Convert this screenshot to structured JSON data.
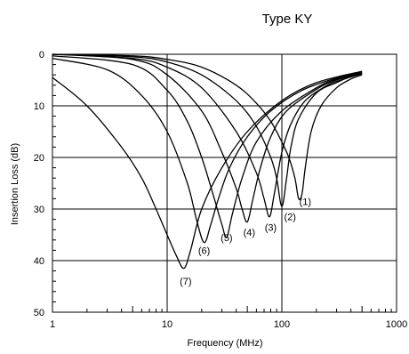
{
  "chart_data": {
    "type": "line",
    "title": "Type KY",
    "xlabel": "Frequency (MHz)",
    "ylabel": "Insertion Loss (dB)",
    "x_scale": "log",
    "xlim": [
      1,
      1000
    ],
    "ylim": [
      0,
      50
    ],
    "y_inverted": true,
    "x_ticks": [
      "1",
      "10",
      "100",
      "1000"
    ],
    "y_ticks": [
      "0",
      "10",
      "20",
      "30",
      "40",
      "50"
    ],
    "grid": true,
    "series": [
      {
        "name": "(1)",
        "x": [
          1,
          5,
          10,
          20,
          40,
          60,
          80,
          100,
          115,
          130,
          140,
          150,
          160,
          180,
          220,
          300,
          400,
          500
        ],
        "y": [
          0,
          0.3,
          1,
          2.5,
          6,
          9.5,
          13,
          17,
          20,
          24,
          28,
          27,
          22,
          15,
          10,
          6.5,
          4.8,
          4.0
        ]
      },
      {
        "name": "(2)",
        "x": [
          1,
          5,
          10,
          20,
          40,
          60,
          80,
          90,
          100,
          110,
          120,
          140,
          200,
          300,
          400,
          500
        ],
        "y": [
          0,
          0.5,
          1.5,
          4,
          9,
          14,
          20,
          24,
          29.5,
          24,
          18,
          12.5,
          7.5,
          5.5,
          4.3,
          3.7
        ]
      },
      {
        "name": "(3)",
        "x": [
          1,
          5,
          10,
          20,
          40,
          60,
          70,
          78,
          86,
          100,
          120,
          160,
          250,
          350,
          500
        ],
        "y": [
          0,
          0.8,
          2.5,
          6.5,
          15,
          23,
          28,
          31.5,
          27,
          19,
          13.5,
          9,
          6,
          4.8,
          3.8
        ]
      },
      {
        "name": "(4)",
        "x": [
          1,
          5,
          10,
          20,
          30,
          40,
          45,
          50,
          56,
          65,
          80,
          110,
          200,
          300,
          500
        ],
        "y": [
          0,
          1,
          4,
          11,
          19,
          26,
          30,
          32.5,
          28,
          22,
          16,
          11,
          6.8,
          5,
          3.8
        ]
      },
      {
        "name": "(5)",
        "x": [
          1,
          5,
          10,
          15,
          20,
          25,
          30,
          33,
          37,
          45,
          60,
          100,
          200,
          300,
          500
        ],
        "y": [
          0.3,
          2,
          7,
          13,
          20,
          27,
          33,
          35.5,
          31,
          24,
          17,
          11,
          6.5,
          4.8,
          3.6
        ]
      },
      {
        "name": "(6)",
        "x": [
          1,
          3,
          6,
          10,
          15,
          18,
          21,
          24,
          28,
          35,
          50,
          80,
          150,
          300,
          500
        ],
        "y": [
          0.8,
          3,
          8,
          15,
          25,
          32,
          36.5,
          33,
          28,
          22,
          16,
          11,
          7,
          4.6,
          3.4
        ]
      },
      {
        "name": "(7)",
        "x": [
          1,
          2,
          4,
          6,
          8,
          10,
          12,
          14,
          16,
          20,
          30,
          50,
          100,
          200,
          500
        ],
        "y": [
          4.5,
          10,
          18,
          24,
          30,
          35,
          39,
          41.5,
          38,
          30,
          22,
          15,
          9,
          5.5,
          3.3
        ]
      }
    ],
    "annotations": [
      {
        "text": "(1)",
        "x": 160,
        "y": 28.5
      },
      {
        "text": "(2)",
        "x": 118,
        "y": 31.5
      },
      {
        "text": "(3)",
        "x": 80,
        "y": 33.5
      },
      {
        "text": "(4)",
        "x": 52,
        "y": 34.5
      },
      {
        "text": "(5)",
        "x": 33,
        "y": 35.5
      },
      {
        "text": "(6)",
        "x": 21,
        "y": 38
      },
      {
        "text": "(7)",
        "x": 14.5,
        "y": 44
      }
    ]
  }
}
